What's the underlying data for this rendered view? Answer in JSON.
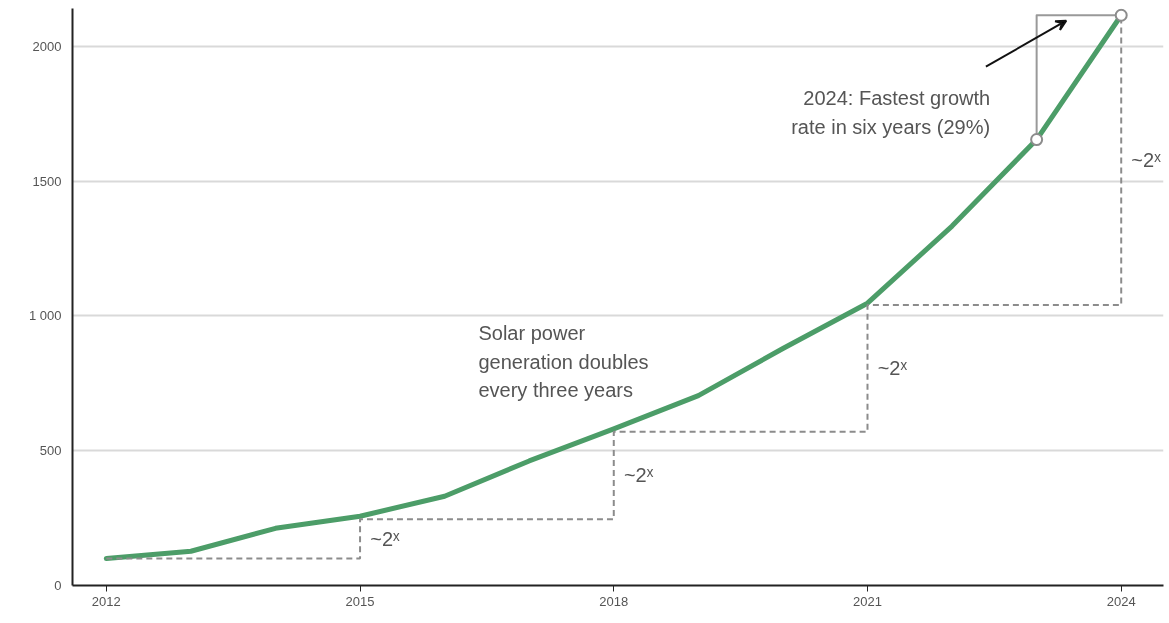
{
  "chart_data": {
    "type": "line",
    "x": [
      2012,
      2013,
      2014,
      2015,
      2016,
      2017,
      2018,
      2019,
      2020,
      2021,
      2022,
      2023,
      2024
    ],
    "series": [
      {
        "color": "#4c9d68",
        "values": [
          100,
          127,
          212,
          257,
          331,
          462,
          581,
          704,
          879,
          1047,
          1333,
          1654,
          2115
        ]
      },
      {
        "type": "step",
        "color": "#8c8c8c",
        "line_style": "dashed",
        "x": [
          2012,
          2015,
          2018,
          2021,
          2024
        ],
        "values": [
          100,
          246,
          570,
          1040,
          2115
        ]
      },
      {
        "color": "#999999",
        "x": [
          2023,
          2023,
          2024
        ],
        "values": [
          1654,
          2115,
          2115
        ]
      },
      {
        "type": "scatter",
        "color": "#8c8c8c",
        "marker": "circle",
        "x": [
          2023,
          2024
        ],
        "values": [
          1654,
          2115
        ]
      }
    ],
    "xlim": [
      2011.6,
      2024.5
    ],
    "ylim": [
      0,
      2140
    ],
    "xticks": [
      2012,
      2015,
      2018,
      2021,
      2024
    ],
    "yticks": [
      0,
      500,
      {
        "value": 1000,
        "label": "1 000"
      },
      1500,
      2000
    ],
    "grid": "y",
    "annotations": [
      {
        "text": "~2ˣ",
        "x": 2015,
        "y": 173
      },
      {
        "text": "~2ˣ",
        "x": 2018,
        "y": 408
      },
      {
        "text": "~2ˣ",
        "x": 2021,
        "y": 805
      },
      {
        "text": "~2ˣ",
        "x": 2024,
        "y": 1578
      },
      "Solar power\ngeneration doubles\nevery three years",
      {
        "text": "2024: Fastest growth\nrate in six years (29%)",
        "x": 2023,
        "y": 1654
      }
    ]
  }
}
